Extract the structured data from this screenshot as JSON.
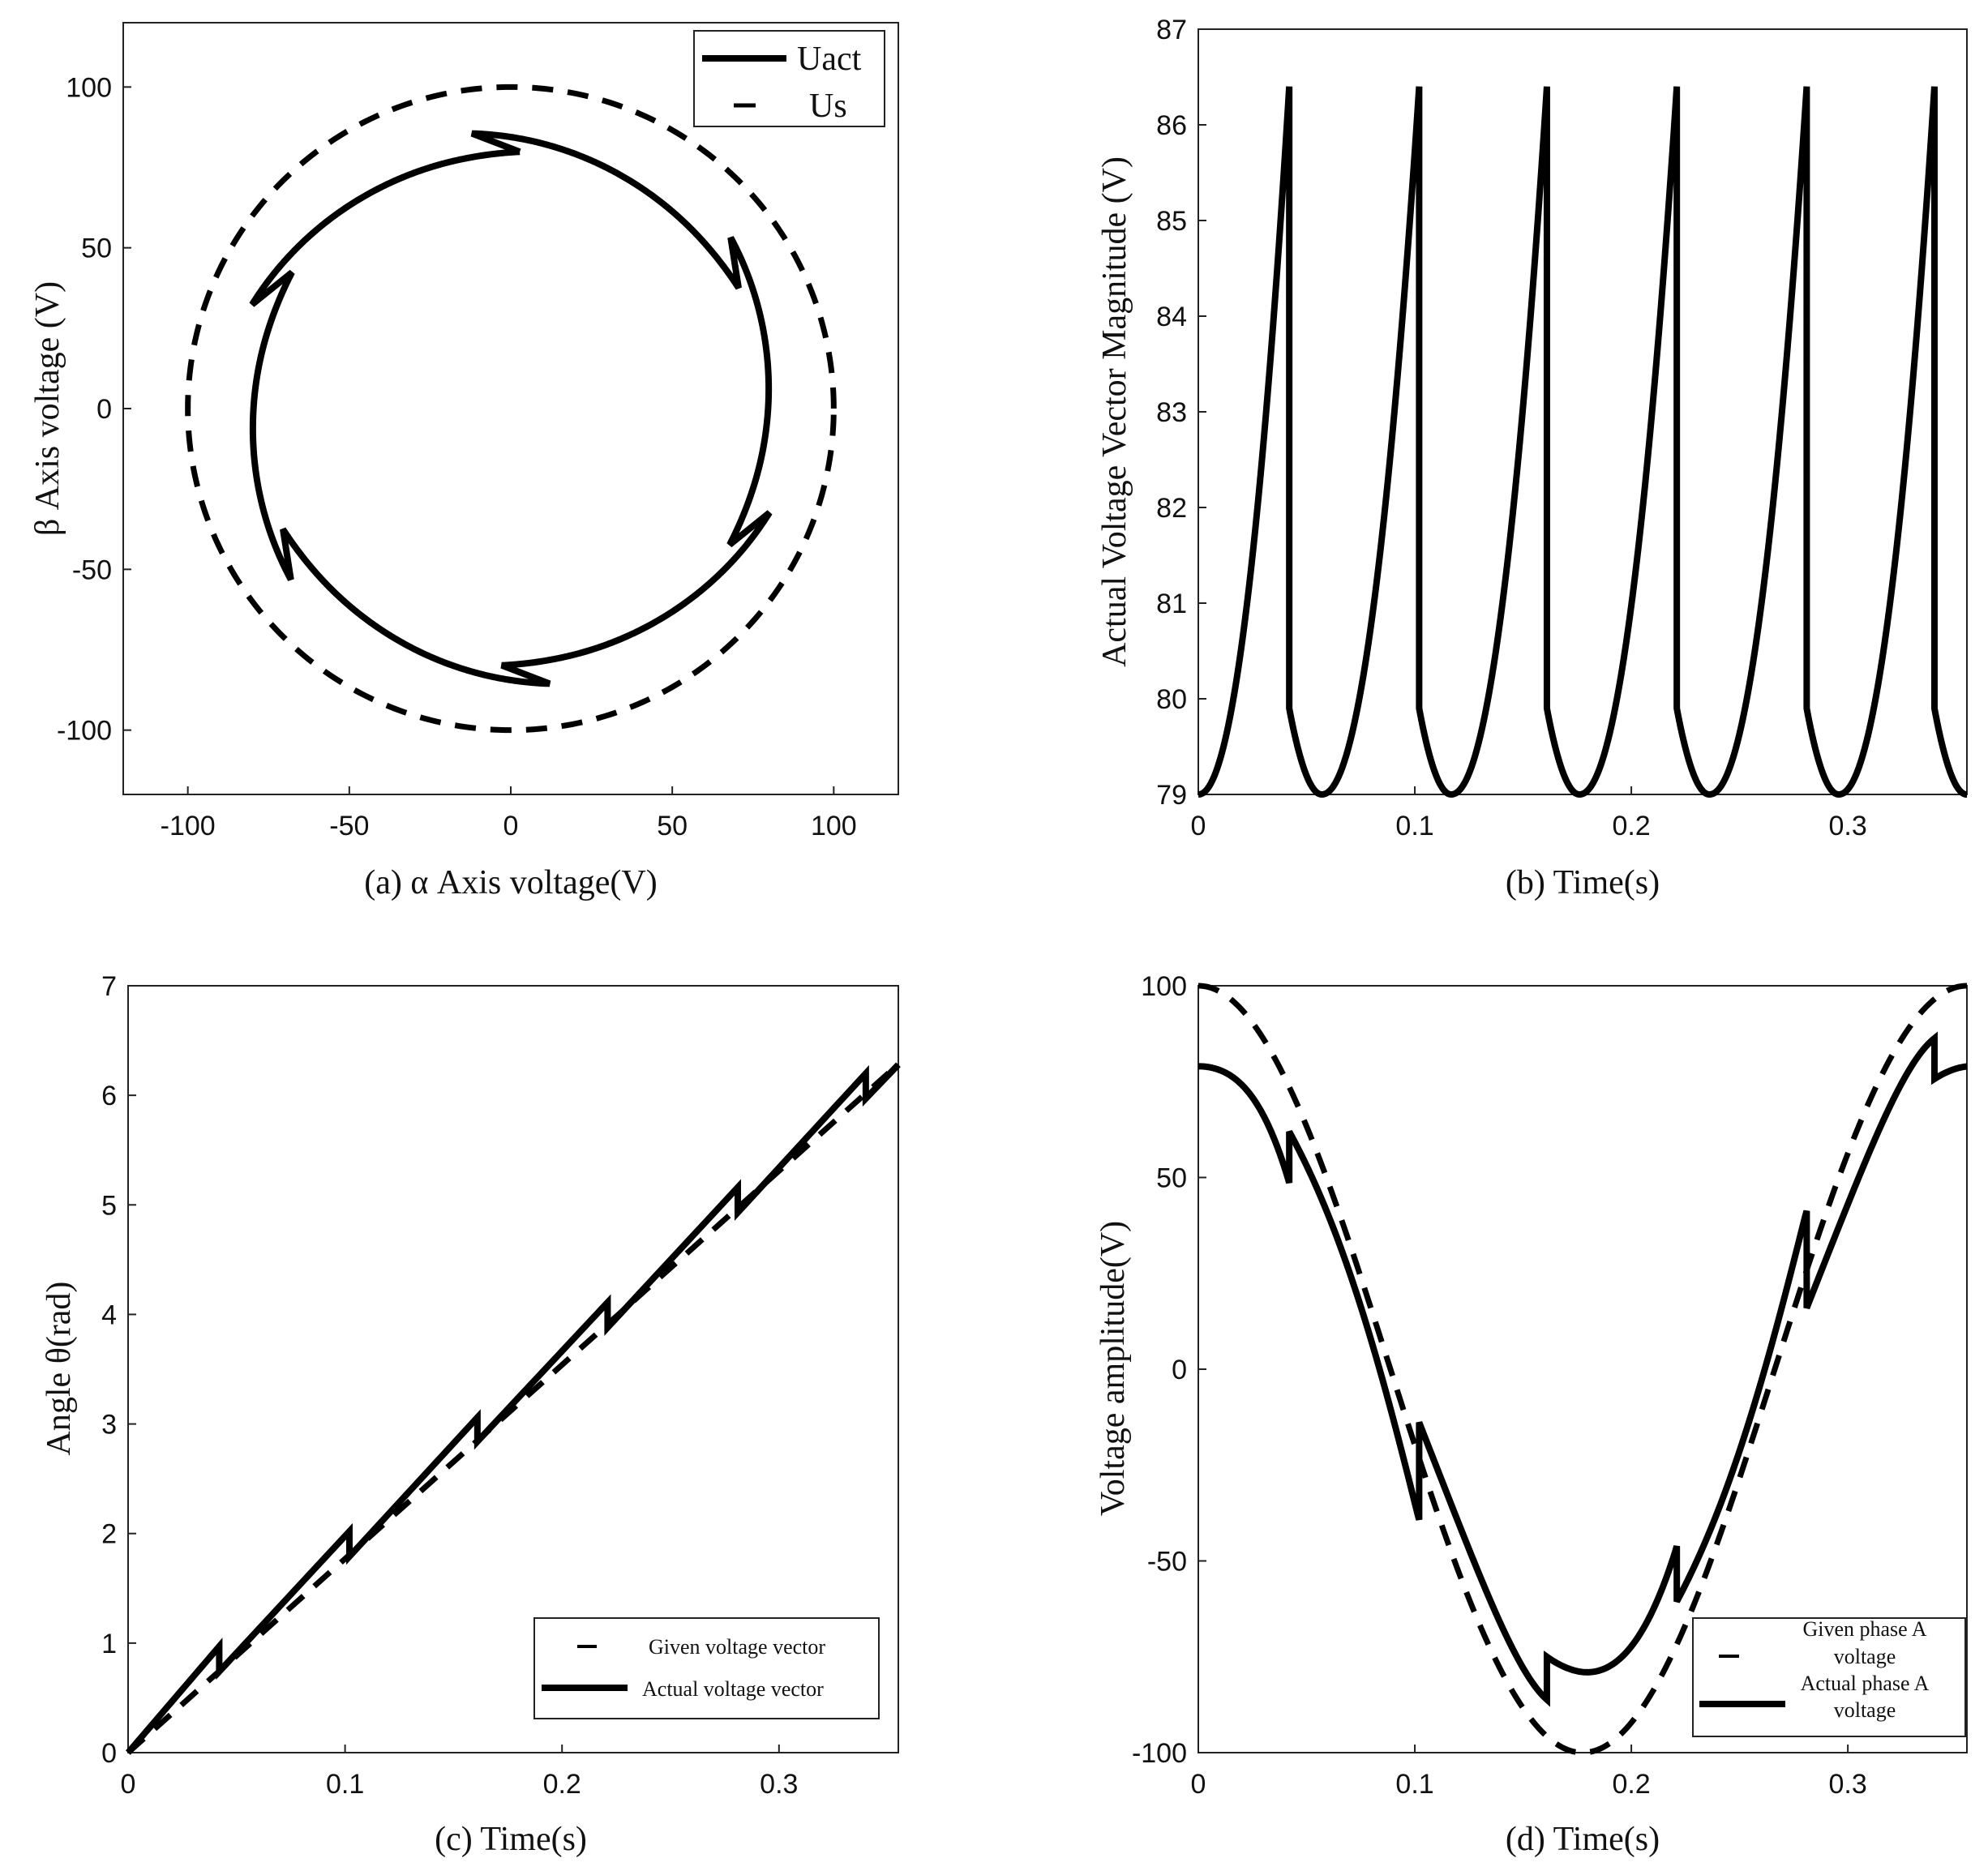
{
  "figure": {
    "panels": [
      "a",
      "b",
      "c",
      "d"
    ]
  },
  "chart_data": [
    {
      "id": "a",
      "type": "line",
      "xlabel": "(a)  α Axis voltage(V)",
      "ylabel": "β Axis voltage (V)",
      "xlim": [
        -120,
        120
      ],
      "ylim": [
        -120,
        120
      ],
      "xticks": [
        -100,
        -50,
        0,
        50,
        100
      ],
      "yticks": [
        -100,
        -50,
        0,
        50,
        100
      ],
      "grid": false,
      "legend": {
        "position": "top-right",
        "entries": [
          "Uact",
          "Us"
        ]
      },
      "series": [
        {
          "name": "Uact",
          "style": "solid",
          "note": "hexagonal-sector trajectory; magnitude 79 V rising to 86.4 V within each 60° sector, then dropping to 79.9 V",
          "generator": {
            "kind": "polar-sawtooth",
            "min": 79,
            "peak": 86.4,
            "reset": 79.9,
            "sectors": 6,
            "phase_deg": 90,
            "sector_start_deg": 0
          }
        },
        {
          "name": "Us",
          "style": "dashed",
          "note": "reference circle of radius 100 V",
          "generator": {
            "kind": "circle",
            "radius": 100
          }
        }
      ]
    },
    {
      "id": "b",
      "type": "line",
      "xlabel": "(b) Time(s)",
      "ylabel": "Actual Voltage Vector Magnitude (V)",
      "xlim": [
        0,
        0.355
      ],
      "ylim": [
        79,
        87
      ],
      "xticks": [
        0,
        0.1,
        0.2,
        0.3
      ],
      "yticks": [
        79,
        80,
        81,
        82,
        83,
        84,
        85,
        86,
        87
      ],
      "grid": false,
      "series": [
        {
          "name": "Actual voltage vector magnitude",
          "style": "solid",
          "note": "periodic: drops from 79.9 V to 79 V, rises to 86.4 V at each sector boundary",
          "switch_times": [
            0.042,
            0.102,
            0.161,
            0.221,
            0.281,
            0.34
          ],
          "min_times": [
            0.0,
            0.057,
            0.117,
            0.176,
            0.236,
            0.296,
            0.355
          ],
          "peak": 86.4,
          "min": 79,
          "reset": 79.9,
          "period": 0.0593
        }
      ]
    },
    {
      "id": "c",
      "type": "line",
      "xlabel": "(c) Time(s)",
      "ylabel": "Angle θ(rad)",
      "xlim": [
        0,
        0.355
      ],
      "ylim": [
        0,
        7
      ],
      "xticks": [
        0,
        0.1,
        0.2,
        0.3
      ],
      "yticks": [
        0,
        1,
        2,
        3,
        4,
        5,
        6,
        7
      ],
      "grid": false,
      "legend": {
        "position": "bottom-right",
        "entries": [
          "Given voltage vector",
          "Actual voltage vector"
        ]
      },
      "series": [
        {
          "name": "Given voltage vector",
          "style": "dashed",
          "x": [
            0,
            0.355
          ],
          "y": [
            0,
            6.283
          ]
        },
        {
          "name": "Actual voltage vector",
          "style": "solid",
          "note": "sawtooth around the reference; jump up before each sector switch, then step down",
          "switch_times": [
            0.042,
            0.102,
            0.161,
            0.221,
            0.281,
            0.34
          ],
          "jump_peak": [
            0.97,
            2.02,
            3.06,
            4.11,
            5.16,
            6.2
          ],
          "jump_low": [
            0.74,
            1.79,
            2.84,
            3.88,
            4.93,
            5.97
          ]
        }
      ]
    },
    {
      "id": "d",
      "type": "line",
      "xlabel": "(d) Time(s)",
      "ylabel": "Voltage amplitude(V)",
      "xlim": [
        0,
        0.355
      ],
      "ylim": [
        -100,
        100
      ],
      "xticks": [
        0,
        0.1,
        0.2,
        0.3
      ],
      "yticks": [
        -100,
        -50,
        0,
        50,
        100
      ],
      "grid": false,
      "legend": {
        "position": "bottom-right",
        "entries": [
          "Given phase A voltage",
          "Actual phase A voltage"
        ]
      },
      "series": [
        {
          "name": "Given phase A voltage",
          "style": "dashed",
          "note": "100·cos(2πt/0.355)",
          "amplitude": 100,
          "period": 0.355
        },
        {
          "name": "Actual phase A voltage",
          "style": "solid",
          "note": "|U_act|·cos(θ_act), starts at 79 V, minimum about -79 V, steps at switching instants",
          "start": 79,
          "min": -79,
          "switch_times": [
            0.042,
            0.102,
            0.161,
            0.221,
            0.281,
            0.34
          ]
        }
      ]
    }
  ],
  "legend_text": {
    "a_uact": "Uact",
    "a_us": "Us",
    "c_given": "Given voltage vector",
    "c_actual": "Actual voltage vector",
    "d_given_line1": "Given phase A",
    "d_given_line2": "voltage",
    "d_actual_line1": "Actual phase A",
    "d_actual_line2": "voltage"
  }
}
